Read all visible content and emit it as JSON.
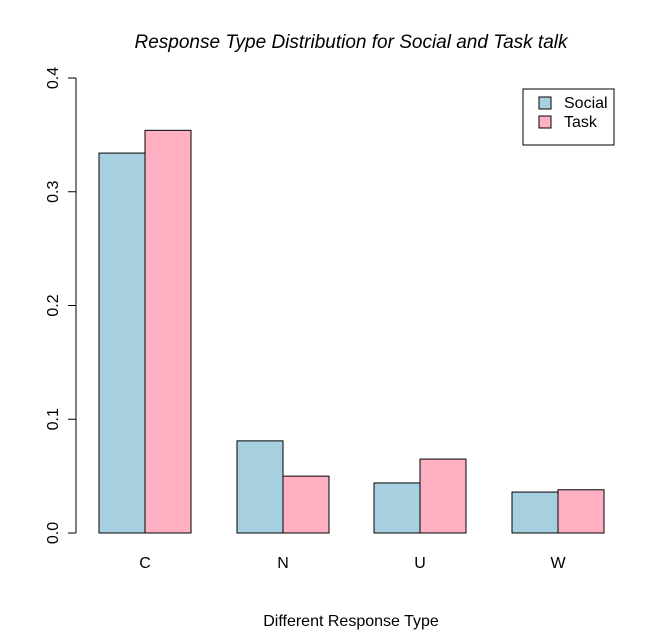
{
  "chart_data": {
    "type": "bar",
    "title": "Response Type Distribution for Social and Task talk",
    "xlabel": "Different Response Type",
    "ylabel": "",
    "categories": [
      "C",
      "N",
      "U",
      "W"
    ],
    "series": [
      {
        "name": "Social",
        "color": "#A6D0E0",
        "values": [
          0.334,
          0.081,
          0.044,
          0.036
        ]
      },
      {
        "name": "Task",
        "color": "#FFB0C2",
        "values": [
          0.354,
          0.05,
          0.065,
          0.038
        ]
      }
    ],
    "ylim": [
      0,
      0.4
    ],
    "y_ticks": [
      "0.0",
      "0.1",
      "0.2",
      "0.3",
      "0.4"
    ],
    "legend_position": "top-right",
    "grid": false
  }
}
